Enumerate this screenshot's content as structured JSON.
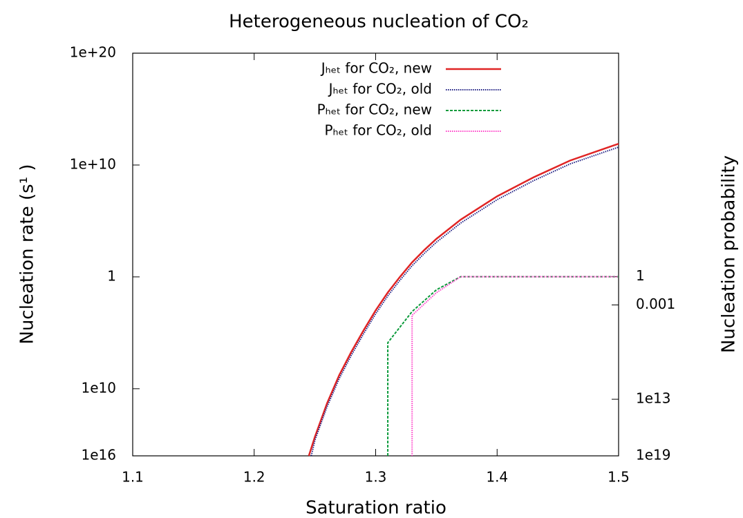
{
  "chart_data": {
    "type": "line",
    "title": "Heterogeneous nucleation of CO₂",
    "x_label": "Saturation ratio",
    "y_label": "Nucleation rate (s¹ )",
    "y2_label": "Nucleation probability",
    "xlim": [
      1.1,
      1.5
    ],
    "xticks": [
      1.1,
      1.2,
      1.3,
      1.4,
      1.5
    ],
    "ylim": [
      1e-16,
      1e+20
    ],
    "log_y": true,
    "yticks": [
      {
        "value": 1e-16,
        "label": "1e16"
      },
      {
        "value": 1e-10,
        "label": "1e10"
      },
      1,
      {
        "value": 10000000000.0,
        "label": "1e+10"
      },
      {
        "value": 1e+20,
        "label": "1e+20"
      }
    ],
    "y2lim": [
      1e-19,
      5e+23
    ],
    "log_y2": true,
    "y2ticks": [
      {
        "value": 1e-19,
        "label": "1e19"
      },
      {
        "value": 1e-13,
        "label": "1e13"
      },
      0.001,
      1
    ],
    "legend": "top",
    "series": [
      {
        "name": "Jₕₑₜ for CO₂, new",
        "color": "#e02424",
        "line_style": "solid",
        "x": [
          1.245,
          1.25,
          1.26,
          1.27,
          1.28,
          1.29,
          1.3,
          1.31,
          1.32,
          1.33,
          1.34,
          1.35,
          1.37,
          1.4,
          1.43,
          1.46,
          1.5
        ],
        "values": [
          1e-16,
          5e-15,
          5e-12,
          1.6e-09,
          2e-07,
          1.6e-05,
          0.001,
          0.04,
          1,
          20,
          250,
          2500,
          130000.0,
          16000000.0,
          800000000.0,
          25000000000.0,
          800000000000.0
        ]
      },
      {
        "name": "Jₕₑₜ for CO₂, old",
        "color": "#1a1a80",
        "line_style": "dotted",
        "x": [
          1.247,
          1.25,
          1.26,
          1.27,
          1.28,
          1.29,
          1.3,
          1.31,
          1.32,
          1.33,
          1.34,
          1.35,
          1.37,
          1.4,
          1.43,
          1.46,
          1.5
        ],
        "values": [
          1e-16,
          2.5e-15,
          2.5e-12,
          8e-10,
          1e-07,
          8e-06,
          0.0005,
          0.02,
          0.5,
          10,
          125,
          1250,
          65000.0,
          8000000.0,
          400000000.0,
          12500000000.0,
          400000000000.0
        ]
      },
      {
        "name": "Pₕₑₜ for CO₂, new",
        "color": "#0a9a3a",
        "line_style": "dashed",
        "axis": "y2",
        "x": [
          1.31,
          1.31,
          1.33,
          1.35,
          1.37,
          1.5
        ],
        "values": [
          1e-19,
          1e-07,
          0.0002,
          0.04,
          1,
          1
        ]
      },
      {
        "name": "Pₕₑₜ for CO₂, old",
        "color": "#ff3fc8",
        "line_style": "dotted",
        "axis": "y2",
        "x": [
          1.33,
          1.33,
          1.35,
          1.37,
          1.5
        ],
        "values": [
          1e-19,
          8e-05,
          0.02,
          1,
          1
        ]
      }
    ]
  }
}
